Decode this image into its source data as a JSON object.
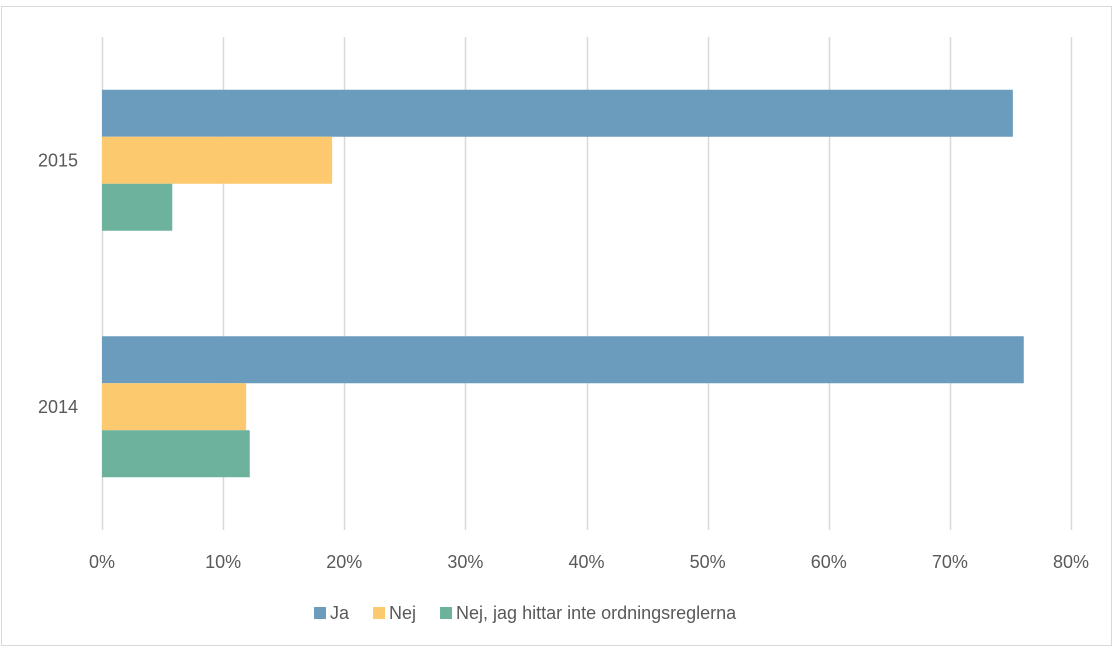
{
  "heading": "",
  "chart_data": {
    "type": "bar",
    "orientation": "horizontal",
    "categories": [
      "2015",
      "2014"
    ],
    "series": [
      {
        "name": "Ja",
        "values": [
          75.2,
          76.1
        ],
        "color": "#6b9bbd"
      },
      {
        "name": "Nej",
        "values": [
          19.0,
          11.9
        ],
        "color": "#fdc96e"
      },
      {
        "name": "Nej, jag hittar inte ordningsreglerna",
        "values": [
          5.8,
          12.2
        ],
        "color": "#6db29d"
      }
    ],
    "xlim": [
      0,
      80
    ],
    "xticks": [
      0,
      10,
      20,
      30,
      40,
      50,
      60,
      70,
      80
    ],
    "xtick_labels": [
      "0%",
      "10%",
      "20%",
      "30%",
      "40%",
      "50%",
      "60%",
      "70%",
      "80%"
    ],
    "grid": "vertical",
    "grid_color": "#d9d9d9",
    "legend_position": "bottom"
  }
}
